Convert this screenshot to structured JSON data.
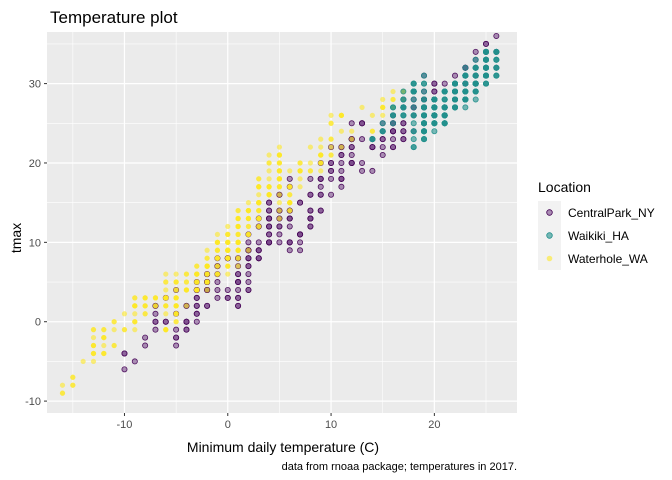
{
  "chart_data": {
    "type": "scatter",
    "title": "Temperature plot",
    "xlabel": "Minimum daily temperature (C)",
    "ylabel": "tmax",
    "caption": "data from rnoaa package; temperatures in 2017.",
    "xlim": [
      -17.5,
      28
    ],
    "ylim": [
      -11.5,
      36.5
    ],
    "xticks": [
      -10,
      0,
      10,
      20
    ],
    "yticks": [
      -10,
      0,
      10,
      20,
      30
    ],
    "grid": true,
    "legend": {
      "title": "Location",
      "position": "right"
    },
    "series": [
      {
        "name": "CentralPark_NY",
        "color": "#440154",
        "fill": "#7a4a8a",
        "clusters": [
          {
            "x": [
              -11,
              -5
            ],
            "y": [
              -7,
              3
            ],
            "n": 16
          },
          {
            "x": [
              -5,
              0
            ],
            "y": [
              -2,
              8
            ],
            "n": 45
          },
          {
            "x": [
              0,
              6
            ],
            "y": [
              3,
              16
            ],
            "n": 75
          },
          {
            "x": [
              6,
              13
            ],
            "y": [
              11,
              24
            ],
            "n": 70
          },
          {
            "x": [
              13,
              20
            ],
            "y": [
              20,
              30
            ],
            "n": 55
          },
          {
            "x": [
              18,
              26
            ],
            "y": [
              25,
              34
            ],
            "n": 55
          }
        ]
      },
      {
        "name": "Waikiki_HA",
        "color": "#21908C",
        "fill": "#21908C",
        "clusters": [
          {
            "x": [
              14,
              19
            ],
            "y": [
              23,
              30
            ],
            "n": 40
          },
          {
            "x": [
              18,
              26
            ],
            "y": [
              24,
              33
            ],
            "n": 200
          }
        ]
      },
      {
        "name": "Waterhole_WA",
        "color": "#FDE725",
        "fill": "#FDE725",
        "clusters": [
          {
            "x": [
              -16.5,
              -12
            ],
            "y": [
              -10,
              -2
            ],
            "n": 14
          },
          {
            "x": [
              -13,
              -5
            ],
            "y": [
              -3,
              5
            ],
            "n": 55
          },
          {
            "x": [
              -6,
              1
            ],
            "y": [
              1,
              11
            ],
            "n": 120
          },
          {
            "x": [
              0,
              5
            ],
            "y": [
              8,
              20
            ],
            "n": 110
          },
          {
            "x": [
              5,
              11
            ],
            "y": [
              15,
              25
            ],
            "n": 55
          },
          {
            "x": [
              11,
              17
            ],
            "y": [
              22,
              30
            ],
            "n": 20
          }
        ]
      }
    ]
  }
}
